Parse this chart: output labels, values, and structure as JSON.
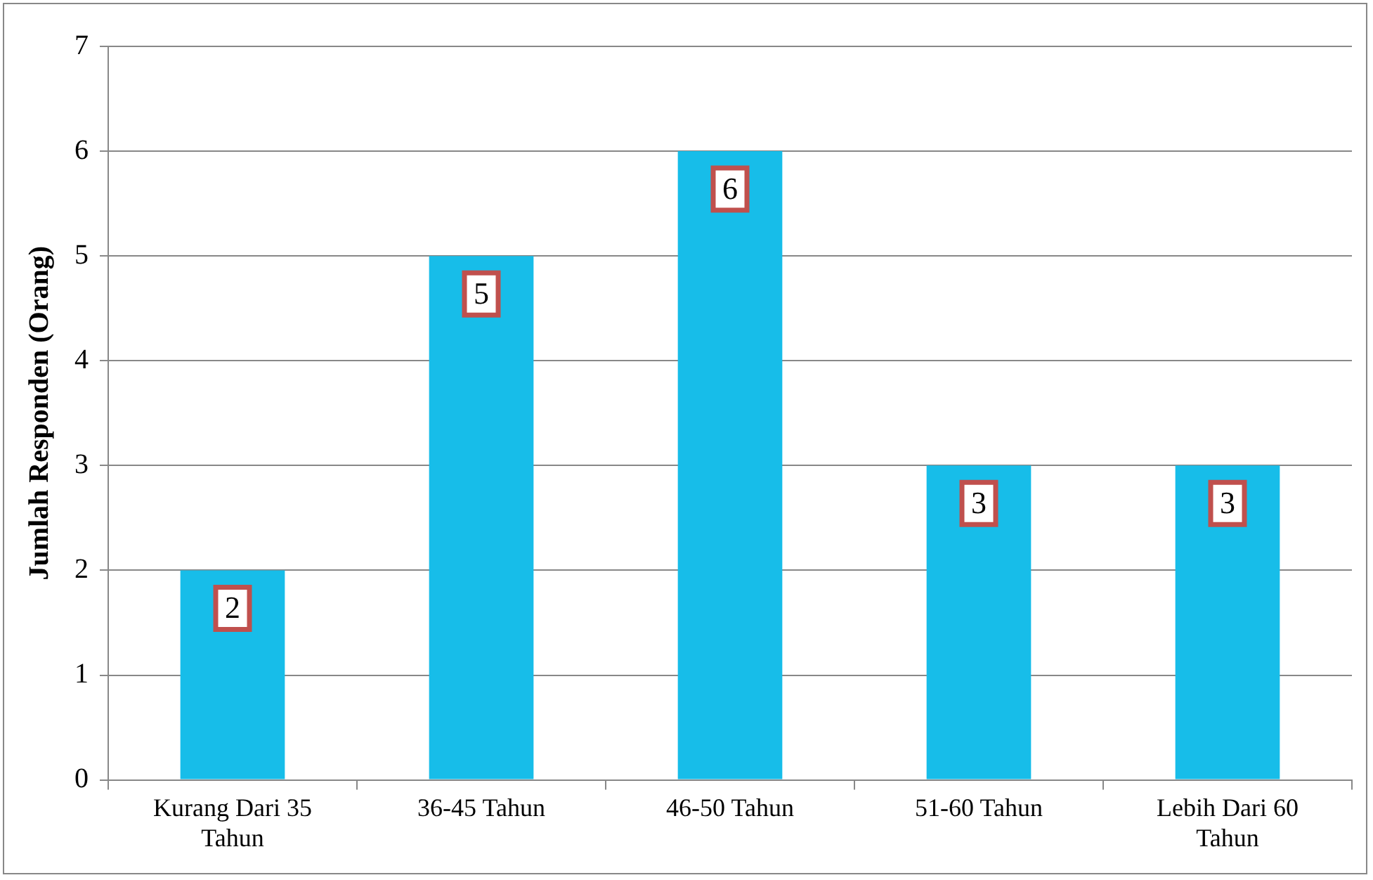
{
  "chart_data": {
    "type": "bar",
    "ylabel": "Jumlah Responden (Orang)",
    "categories": [
      "Kurang Dari 35 Tahun",
      "36-45 Tahun",
      "46-50 Tahun",
      "51-60 Tahun",
      "Lebih Dari 60 Tahun"
    ],
    "values": [
      2,
      5,
      6,
      3,
      3
    ],
    "color": "#17bde9",
    "ylim": [
      0,
      7
    ],
    "yticks": [
      0,
      1,
      2,
      3,
      4,
      5,
      6,
      7
    ],
    "grid": "y",
    "data_labels": true
  }
}
